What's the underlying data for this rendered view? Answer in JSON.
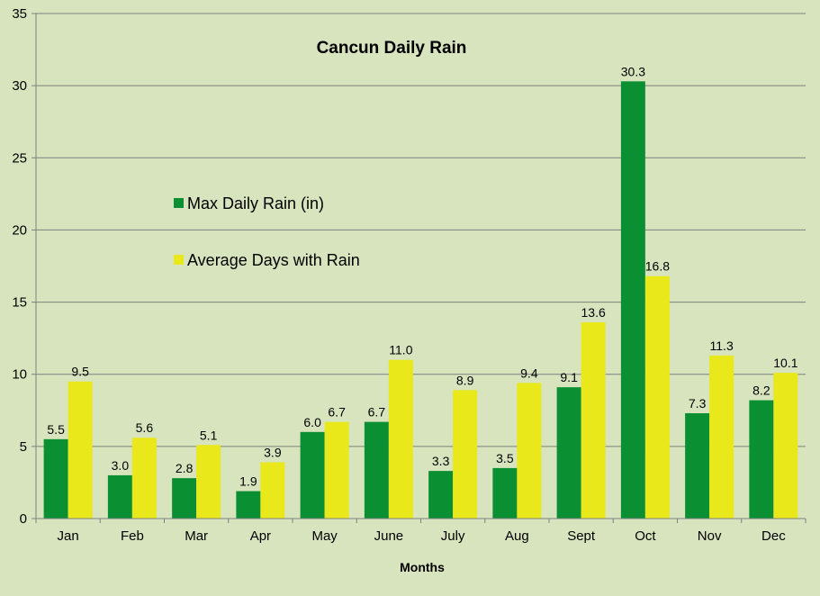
{
  "chart_data": {
    "type": "bar",
    "title": "Cancun Daily Rain",
    "xlabel": "Months",
    "ylabel": "",
    "categories": [
      "Jan",
      "Feb",
      "Mar",
      "Apr",
      "May",
      "June",
      "July",
      "Aug",
      "Sept",
      "Oct",
      "Nov",
      "Dec"
    ],
    "series": [
      {
        "name": "Max Daily Rain (in)",
        "color": "#0a8f32",
        "values": [
          5.5,
          3.0,
          2.8,
          1.9,
          6.0,
          6.7,
          3.3,
          3.5,
          9.1,
          30.3,
          7.3,
          8.2
        ],
        "labels": [
          "5.5",
          "3.0",
          "2.8",
          "1.9",
          "6.0",
          "6.7",
          "3.3",
          "3.5",
          "9.1",
          "30.3",
          "7.3",
          "8.2"
        ]
      },
      {
        "name": "Average Days with Rain",
        "color": "#e8e81a",
        "values": [
          9.5,
          5.6,
          5.1,
          3.9,
          6.7,
          11.0,
          8.9,
          9.4,
          13.6,
          16.8,
          11.3,
          10.1
        ],
        "labels": [
          "9.5",
          "5.6",
          "5.1",
          "3.9",
          "6.7",
          "11.0",
          "8.9",
          "9.4",
          "13.6",
          "16.8",
          "11.3",
          "10.1"
        ]
      }
    ],
    "ylim": [
      0,
      35
    ],
    "yticks": [
      "0",
      "5",
      "10",
      "15",
      "20",
      "25",
      "30",
      "35"
    ],
    "grid": true,
    "legend_position": "left"
  }
}
